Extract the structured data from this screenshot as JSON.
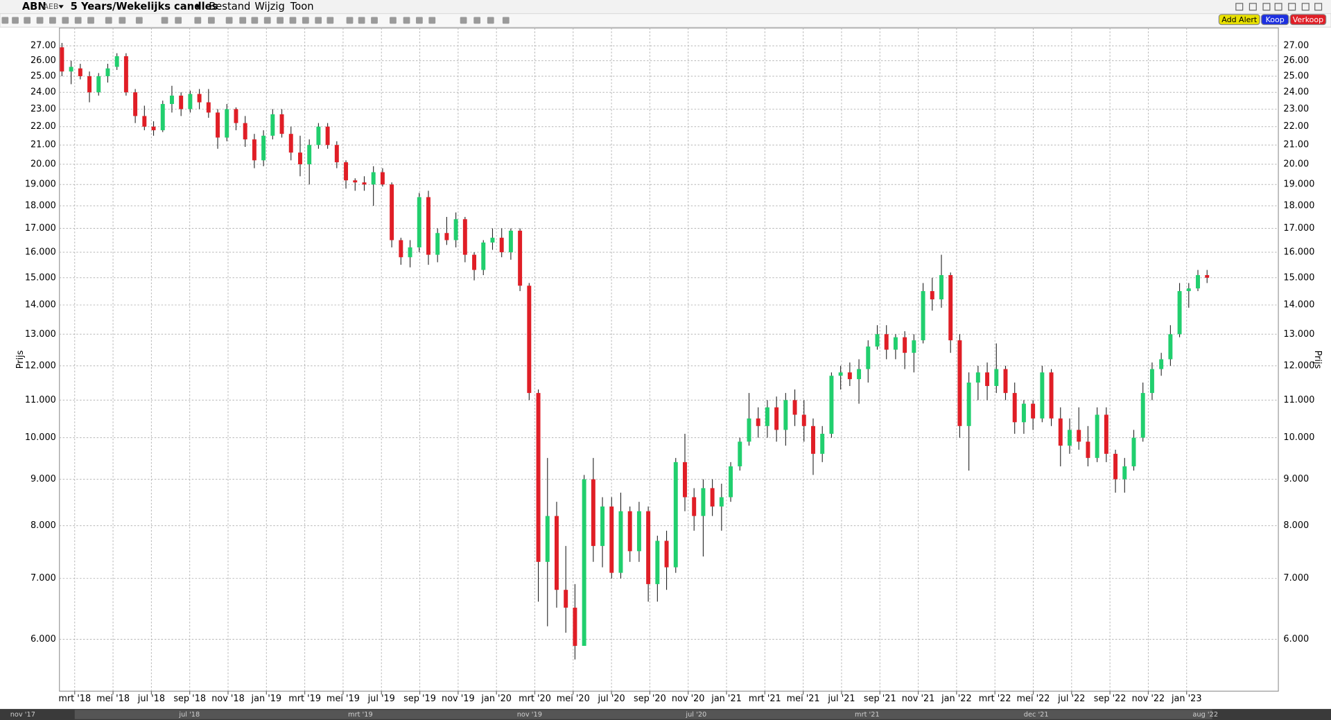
{
  "toolbar": {
    "symbol": "ABN",
    "exchange": "AEB",
    "period": "5 Years/Wekelijks candles",
    "menus": [
      "Bestand",
      "Wijzig",
      "Toon"
    ],
    "buttons": [
      "Add Alert",
      "Koop",
      "Verkoop"
    ]
  },
  "chart_data": {
    "type": "candlestick",
    "y_label": "Prijs",
    "log_scale": true,
    "grid": true,
    "up_color": "#21cf6e",
    "down_color": "#e01e26",
    "ylim": [
      5.26,
      28.25
    ],
    "yticks": [
      {
        "value": 27,
        "label": "27.00"
      },
      {
        "value": 26,
        "label": "26.00"
      },
      {
        "value": 25,
        "label": "25.00"
      },
      {
        "value": 24,
        "label": "24.00"
      },
      {
        "value": 23,
        "label": "23.00"
      },
      {
        "value": 22,
        "label": "22.00"
      },
      {
        "value": 21,
        "label": "21.00"
      },
      {
        "value": 20,
        "label": "20.00"
      },
      {
        "value": 19,
        "label": "19.000"
      },
      {
        "value": 18,
        "label": "18.000"
      },
      {
        "value": 17,
        "label": "17.000"
      },
      {
        "value": 16,
        "label": "16.000"
      },
      {
        "value": 15,
        "label": "15.000"
      },
      {
        "value": 14,
        "label": "14.000"
      },
      {
        "value": 13,
        "label": "13.000"
      },
      {
        "value": 12,
        "label": "12.000"
      },
      {
        "value": 11,
        "label": "11.000"
      },
      {
        "value": 10,
        "label": "10.000"
      },
      {
        "value": 9,
        "label": "9.000"
      },
      {
        "value": 8,
        "label": "8.000"
      },
      {
        "value": 7,
        "label": "7.000"
      },
      {
        "value": 6,
        "label": "6.000"
      }
    ],
    "x_labels": [
      "mrt '18",
      "mei '18",
      "jul '18",
      "sep '18",
      "nov '18",
      "jan '19",
      "mrt '19",
      "mei '19",
      "jul '19",
      "sep '19",
      "nov '19",
      "jan '20",
      "mrt '20",
      "mei '20",
      "jul '20",
      "sep '20",
      "nov '20",
      "jan '21",
      "mrt '21",
      "mei '21",
      "jul '21",
      "sep '21",
      "nov '21",
      "jan '22",
      "mrt '22",
      "mei '22",
      "jul '22",
      "sep '22",
      "nov '22",
      "jan '23"
    ],
    "candles": [
      [
        26.9,
        27.2,
        25.0,
        25.3
      ],
      [
        25.3,
        26.0,
        24.5,
        25.6
      ],
      [
        25.5,
        25.8,
        24.8,
        25.0
      ],
      [
        25.0,
        25.3,
        23.4,
        24.0
      ],
      [
        24.0,
        25.2,
        23.8,
        25.0
      ],
      [
        25.0,
        25.8,
        24.6,
        25.5
      ],
      [
        25.6,
        26.5,
        25.4,
        26.3
      ],
      [
        26.3,
        26.5,
        23.8,
        24.0
      ],
      [
        24.0,
        24.2,
        22.2,
        22.6
      ],
      [
        22.6,
        23.2,
        21.8,
        22.0
      ],
      [
        22.0,
        22.3,
        21.5,
        21.8
      ],
      [
        21.8,
        23.5,
        21.7,
        23.3
      ],
      [
        23.3,
        24.4,
        22.8,
        23.8
      ],
      [
        23.8,
        24.0,
        22.6,
        23.0
      ],
      [
        23.0,
        24.1,
        22.8,
        23.9
      ],
      [
        23.9,
        24.2,
        23.0,
        23.4
      ],
      [
        23.4,
        24.2,
        22.5,
        22.8
      ],
      [
        22.8,
        23.0,
        20.8,
        21.4
      ],
      [
        21.4,
        23.3,
        21.2,
        23.0
      ],
      [
        23.0,
        23.1,
        21.8,
        22.2
      ],
      [
        22.2,
        22.6,
        20.9,
        21.3
      ],
      [
        21.3,
        21.6,
        19.8,
        20.2
      ],
      [
        20.2,
        21.8,
        19.9,
        21.5
      ],
      [
        21.5,
        23.0,
        21.3,
        22.7
      ],
      [
        22.7,
        23.0,
        21.4,
        21.6
      ],
      [
        21.6,
        22.0,
        20.2,
        20.6
      ],
      [
        20.6,
        21.5,
        19.4,
        20.0
      ],
      [
        20.0,
        21.3,
        19.0,
        21.0
      ],
      [
        21.0,
        22.2,
        20.8,
        22.0
      ],
      [
        22.0,
        22.2,
        20.8,
        21.0
      ],
      [
        21.0,
        21.2,
        19.8,
        20.1
      ],
      [
        20.1,
        20.2,
        18.8,
        19.2
      ],
      [
        19.2,
        19.3,
        18.7,
        19.1
      ],
      [
        19.1,
        19.4,
        18.7,
        19.0
      ],
      [
        19.0,
        19.9,
        18.0,
        19.6
      ],
      [
        19.6,
        19.8,
        18.9,
        19.0
      ],
      [
        19.0,
        19.1,
        16.2,
        16.5
      ],
      [
        16.5,
        16.6,
        15.5,
        15.8
      ],
      [
        15.8,
        16.5,
        15.4,
        16.2
      ],
      [
        16.2,
        18.6,
        16.0,
        18.4
      ],
      [
        18.4,
        18.7,
        15.5,
        15.9
      ],
      [
        15.9,
        17.0,
        15.6,
        16.8
      ],
      [
        16.8,
        17.5,
        16.3,
        16.5
      ],
      [
        16.5,
        17.7,
        16.2,
        17.4
      ],
      [
        17.4,
        17.5,
        15.6,
        15.9
      ],
      [
        15.9,
        16.0,
        14.9,
        15.3
      ],
      [
        15.3,
        16.5,
        15.1,
        16.4
      ],
      [
        16.4,
        17.0,
        16.1,
        16.6
      ],
      [
        16.6,
        17.0,
        15.8,
        16.0
      ],
      [
        16.0,
        17.0,
        15.7,
        16.9
      ],
      [
        16.9,
        17.0,
        14.5,
        14.7
      ],
      [
        14.7,
        14.8,
        11.0,
        11.2
      ],
      [
        11.2,
        11.3,
        6.6,
        7.3
      ],
      [
        7.3,
        9.5,
        6.2,
        8.2
      ],
      [
        8.2,
        8.5,
        6.5,
        6.8
      ],
      [
        6.8,
        7.6,
        6.1,
        6.5
      ],
      [
        6.5,
        6.9,
        5.7,
        5.9
      ],
      [
        5.9,
        9.1,
        5.9,
        9.0
      ],
      [
        9.0,
        9.5,
        7.3,
        7.6
      ],
      [
        7.6,
        8.6,
        7.2,
        8.4
      ],
      [
        8.4,
        8.6,
        7.0,
        7.1
      ],
      [
        7.1,
        8.7,
        7.0,
        8.3
      ],
      [
        8.3,
        8.4,
        7.3,
        7.5
      ],
      [
        7.5,
        8.5,
        7.3,
        8.3
      ],
      [
        8.3,
        8.4,
        6.6,
        6.9
      ],
      [
        6.9,
        7.8,
        6.6,
        7.7
      ],
      [
        7.7,
        7.9,
        6.8,
        7.2
      ],
      [
        7.2,
        9.5,
        7.1,
        9.4
      ],
      [
        9.4,
        10.1,
        8.3,
        8.6
      ],
      [
        8.6,
        8.8,
        7.9,
        8.2
      ],
      [
        8.2,
        9.0,
        7.4,
        8.8
      ],
      [
        8.8,
        9.0,
        8.2,
        8.4
      ],
      [
        8.4,
        8.9,
        7.9,
        8.6
      ],
      [
        8.6,
        9.4,
        8.5,
        9.3
      ],
      [
        9.3,
        10.0,
        9.2,
        9.9
      ],
      [
        9.9,
        11.2,
        9.8,
        10.5
      ],
      [
        10.5,
        10.8,
        10.0,
        10.3
      ],
      [
        10.3,
        11.0,
        10.0,
        10.8
      ],
      [
        10.8,
        11.1,
        9.9,
        10.2
      ],
      [
        10.2,
        11.2,
        9.8,
        11.0
      ],
      [
        11.0,
        11.3,
        10.3,
        10.6
      ],
      [
        10.6,
        11.0,
        9.9,
        10.3
      ],
      [
        10.3,
        10.5,
        9.1,
        9.6
      ],
      [
        9.6,
        10.3,
        9.4,
        10.1
      ],
      [
        10.1,
        11.8,
        10.0,
        11.7
      ],
      [
        11.7,
        12.0,
        11.3,
        11.8
      ],
      [
        11.8,
        12.1,
        11.4,
        11.6
      ],
      [
        11.6,
        12.2,
        10.9,
        11.9
      ],
      [
        11.9,
        12.8,
        11.5,
        12.6
      ],
      [
        12.6,
        13.3,
        12.5,
        13.0
      ],
      [
        13.0,
        13.3,
        12.2,
        12.5
      ],
      [
        12.5,
        13.0,
        12.2,
        12.9
      ],
      [
        12.9,
        13.1,
        11.9,
        12.4
      ],
      [
        12.4,
        13.0,
        11.8,
        12.8
      ],
      [
        12.8,
        14.8,
        12.7,
        14.5
      ],
      [
        14.5,
        15.0,
        13.8,
        14.2
      ],
      [
        14.2,
        15.9,
        13.9,
        15.1
      ],
      [
        15.1,
        15.2,
        12.4,
        12.8
      ],
      [
        12.8,
        13.0,
        10.0,
        10.3
      ],
      [
        10.3,
        11.8,
        9.2,
        11.5
      ],
      [
        11.5,
        12.0,
        11.0,
        11.8
      ],
      [
        11.8,
        12.1,
        11.0,
        11.4
      ],
      [
        11.4,
        12.7,
        11.2,
        11.9
      ],
      [
        11.9,
        12.0,
        11.0,
        11.2
      ],
      [
        11.2,
        11.5,
        10.1,
        10.4
      ],
      [
        10.4,
        11.0,
        10.1,
        10.9
      ],
      [
        10.9,
        11.0,
        10.2,
        10.5
      ],
      [
        10.5,
        12.0,
        10.4,
        11.8
      ],
      [
        11.8,
        11.9,
        10.3,
        10.5
      ],
      [
        10.5,
        10.8,
        9.3,
        9.8
      ],
      [
        9.8,
        10.5,
        9.6,
        10.2
      ],
      [
        10.2,
        10.8,
        9.7,
        9.9
      ],
      [
        9.9,
        10.3,
        9.3,
        9.5
      ],
      [
        9.5,
        10.8,
        9.4,
        10.6
      ],
      [
        10.6,
        10.8,
        9.4,
        9.6
      ],
      [
        9.6,
        9.7,
        8.7,
        9.0
      ],
      [
        9.0,
        9.5,
        8.7,
        9.3
      ],
      [
        9.3,
        10.2,
        9.2,
        10.0
      ],
      [
        10.0,
        11.5,
        9.9,
        11.2
      ],
      [
        11.2,
        12.1,
        11.0,
        11.9
      ],
      [
        11.9,
        12.4,
        11.7,
        12.2
      ],
      [
        12.2,
        13.3,
        12.0,
        13.0
      ],
      [
        13.0,
        14.8,
        12.9,
        14.5
      ],
      [
        14.5,
        14.8,
        13.9,
        14.6
      ],
      [
        14.6,
        15.3,
        14.5,
        15.1
      ],
      [
        15.1,
        15.3,
        14.8,
        15.0
      ]
    ]
  },
  "navigator": {
    "labels": [
      "nov '17",
      "jul '18",
      "mrt '19",
      "nov '19",
      "jul '20",
      "mrt '21",
      "dec '21",
      "aug '22"
    ]
  }
}
